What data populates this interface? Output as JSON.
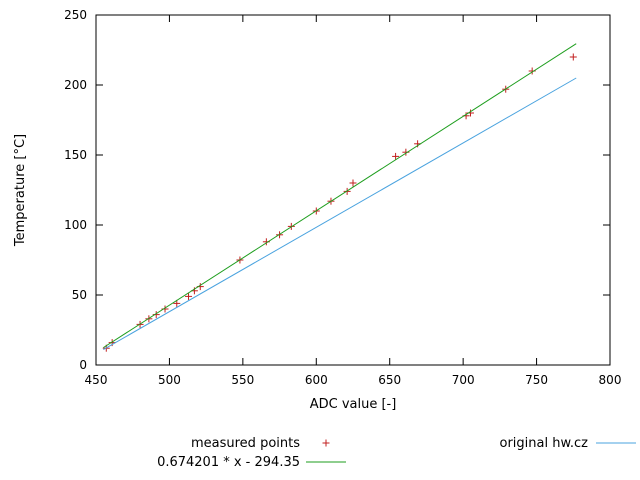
{
  "chart_data": {
    "type": "scatter",
    "title": "",
    "xlabel": "ADC value [-]",
    "ylabel": "Temperature [°C]",
    "xlim": [
      450,
      800
    ],
    "ylim": [
      0,
      250
    ],
    "xticks": [
      450,
      500,
      550,
      600,
      650,
      700,
      750,
      800
    ],
    "yticks": [
      0,
      50,
      100,
      150,
      200,
      250
    ],
    "grid": false,
    "legend_position": "below-plot",
    "series": [
      {
        "name": "measured points",
        "type": "scatter",
        "marker": "plus",
        "color": "#c21f1f",
        "points": [
          [
            457,
            12
          ],
          [
            461,
            16
          ],
          [
            480,
            29
          ],
          [
            486,
            33
          ],
          [
            491,
            36
          ],
          [
            497,
            40
          ],
          [
            505,
            44
          ],
          [
            513,
            49
          ],
          [
            517,
            53
          ],
          [
            521,
            56
          ],
          [
            548,
            75
          ],
          [
            566,
            88
          ],
          [
            575,
            93
          ],
          [
            583,
            99
          ],
          [
            600,
            110
          ],
          [
            610,
            117
          ],
          [
            621,
            124
          ],
          [
            625,
            130
          ],
          [
            654,
            149
          ],
          [
            661,
            152
          ],
          [
            669,
            158
          ],
          [
            702,
            178
          ],
          [
            705,
            180
          ],
          [
            729,
            197
          ],
          [
            747,
            210
          ],
          [
            775,
            220
          ]
        ]
      },
      {
        "name": "0.674201 * x - 294.35",
        "type": "line",
        "color": "#1e9e1e",
        "slope": 0.674201,
        "intercept": -294.35,
        "x_range": [
          455,
          777
        ]
      },
      {
        "name": "original hw.cz",
        "type": "line",
        "color": "#4aa3df",
        "points": [
          [
            455,
            11
          ],
          [
            777,
            205
          ]
        ]
      }
    ]
  }
}
